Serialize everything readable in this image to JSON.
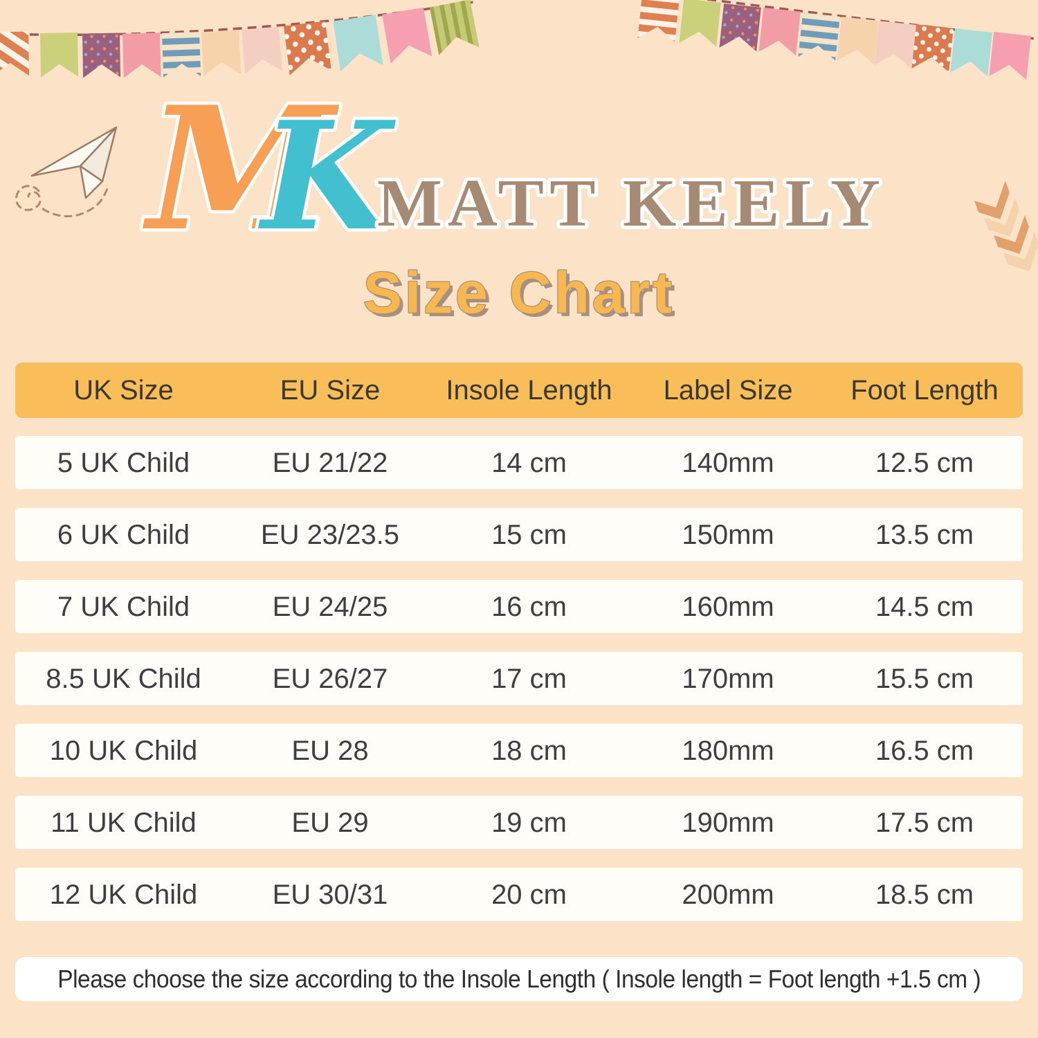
{
  "brand": {
    "monogram": {
      "m": "M",
      "k": "K"
    },
    "name": "MATT KEELY",
    "title": "Size Chart"
  },
  "table": {
    "headers": [
      "UK Size",
      "EU Size",
      "Insole Length",
      "Label Size",
      "Foot Length"
    ],
    "rows": [
      [
        "5 UK Child",
        "EU 21/22",
        "14 cm",
        "140mm",
        "12.5 cm"
      ],
      [
        "6 UK Child",
        "EU 23/23.5",
        "15 cm",
        "150mm",
        "13.5 cm"
      ],
      [
        "7 UK Child",
        "EU 24/25",
        "16 cm",
        "160mm",
        "14.5 cm"
      ],
      [
        "8.5 UK Child",
        "EU 26/27",
        "17 cm",
        "170mm",
        "15.5 cm"
      ],
      [
        "10 UK Child",
        "EU 28",
        "18 cm",
        "180mm",
        "16.5 cm"
      ],
      [
        "11 UK Child",
        "EU 29",
        "19 cm",
        "190mm",
        "17.5 cm"
      ],
      [
        "12 UK Child",
        "EU 30/31",
        "20 cm",
        "200mm",
        "18.5 cm"
      ]
    ]
  },
  "note": {
    "text": "Please choose the size according to the Insole Length ( Insole length = Foot length +1.5 cm )"
  },
  "colors": {
    "background": "#fce3c8",
    "header-bg": "#f9be59",
    "header-text": "#3b382f",
    "row-bg": "#fffdf8",
    "table-text": "#3e3e3e",
    "note-text": "#2f2f2f",
    "brand-orange": "#f7a055",
    "brand-teal": "#42c0d0",
    "brand-brown": "#a68a73",
    "title-yellow": "#f9b750",
    "title-shadow": "#a9907e",
    "string-color": "#9e5a50"
  }
}
